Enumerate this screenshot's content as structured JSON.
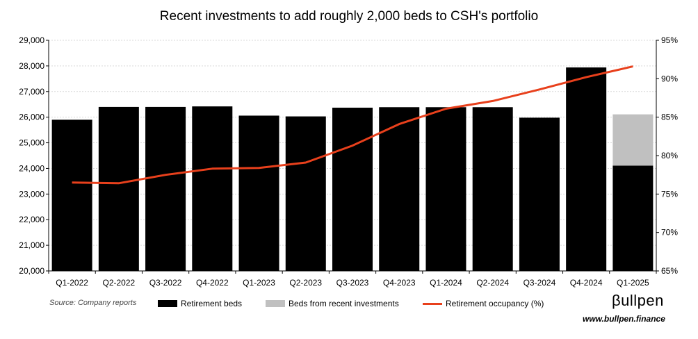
{
  "chart_data": {
    "type": "bar",
    "title": "Recent investments to add roughly 2,000 beds to CSH's portfolio",
    "categories": [
      "Q1-2022",
      "Q2-2022",
      "Q3-2022",
      "Q4-2022",
      "Q1-2023",
      "Q2-2023",
      "Q3-2023",
      "Q4-2023",
      "Q1-2024",
      "Q2-2024",
      "Q3-2024",
      "Q4-2024",
      "Q1-2025"
    ],
    "series": [
      {
        "name": "Retirement beds",
        "kind": "bar",
        "color": "#000000",
        "values": [
          25900,
          26400,
          26400,
          26420,
          26060,
          26030,
          26370,
          26390,
          26390,
          26390,
          25980,
          27940,
          24110
        ]
      },
      {
        "name": "Beds from recent investments",
        "kind": "bar-stacked",
        "color": "#c0c0c0",
        "values": [
          0,
          0,
          0,
          0,
          0,
          0,
          0,
          0,
          0,
          0,
          0,
          0,
          2000
        ]
      },
      {
        "name": "Retirement occupancy (%)",
        "kind": "line",
        "axis": "right",
        "color": "#e8401c",
        "values": [
          76.5,
          76.4,
          77.5,
          78.3,
          78.4,
          79.1,
          81.3,
          84.1,
          86.1,
          87.1,
          88.6,
          90.2,
          91.6
        ]
      }
    ],
    "ylim_left": [
      20000,
      29000
    ],
    "yticks_left": [
      "20,000",
      "21,000",
      "22,000",
      "23,000",
      "24,000",
      "25,000",
      "26,000",
      "27,000",
      "28,000",
      "29,000"
    ],
    "ylim_right": [
      65,
      95
    ],
    "yticks_right": [
      "65%",
      "70%",
      "75%",
      "80%",
      "85%",
      "90%",
      "95%"
    ],
    "grid": true,
    "legend_position": "bottom"
  },
  "footer": {
    "source": "Source: Company reports",
    "brand": "βullpen",
    "url": "www.bullpen.finance"
  }
}
